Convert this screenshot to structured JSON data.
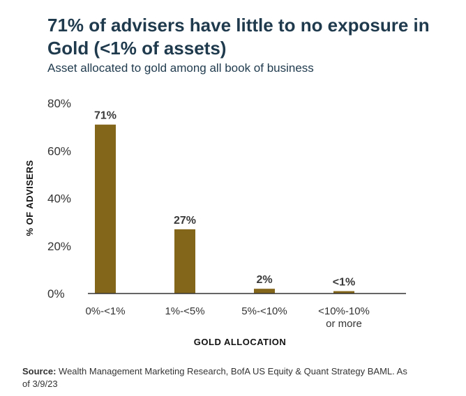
{
  "chart_data": {
    "type": "bar",
    "title": "71% of advisers have little to no exposure in Gold (<1% of assets)",
    "subtitle": "Asset allocated to gold among all book of business",
    "categories": [
      [
        "0%-<1%"
      ],
      [
        "1%-<5%"
      ],
      [
        "5%-<10%"
      ],
      [
        "<10%-10%",
        "or more"
      ]
    ],
    "values": [
      71,
      27,
      2,
      1
    ],
    "data_labels": [
      "71%",
      "27%",
      "2%",
      "<1%"
    ],
    "ylim": [
      0,
      80
    ],
    "yticks": [
      0,
      20,
      40,
      60,
      80
    ],
    "ytick_labels": [
      "0%",
      "20%",
      "40%",
      "60%",
      "80%"
    ],
    "ylabel": "% OF ADVISERS",
    "xlabel": "GOLD ALLOCATION",
    "bar_color": "#84661a",
    "grid": false,
    "legend": "none"
  },
  "source": {
    "label": "Source:",
    "text": "Wealth Management Marketing Research, BofA US Equity & Quant Strategy BAML. As of 3/9/23"
  }
}
